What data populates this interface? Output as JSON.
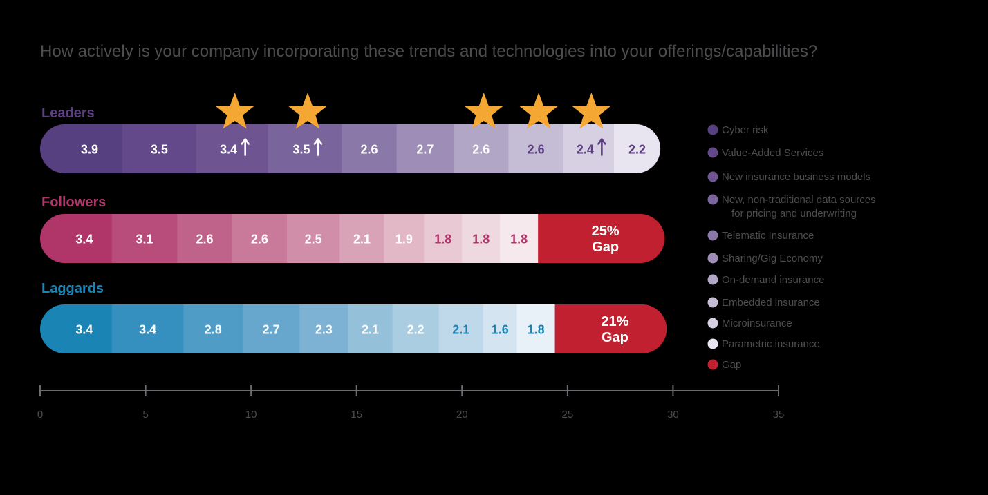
{
  "chart_data": {
    "type": "stacked-bar",
    "title": "How actively is your company incorporating these trends and technologies into your offerings/capabilities?",
    "xlim": [
      0,
      35
    ],
    "ticks": [
      0,
      5,
      10,
      15,
      20,
      25,
      30,
      35
    ],
    "tick_labels": [
      "0",
      "5",
      "10",
      "15",
      "20",
      "25",
      "30",
      "35"
    ],
    "categories": [
      "Cyber risk",
      "Value-Added Services",
      "New insurance business models",
      "New, non-traditional data sources for pricing and underwriting",
      "Telematic Insurance",
      "Sharing/Gig Economy",
      "On-demand insurance",
      "Embedded insurance",
      "Microinsurance",
      "Parametric insurance"
    ],
    "groups": [
      {
        "name": "Leaders",
        "label_color": "#5b3f80",
        "values": [
          3.9,
          3.5,
          3.4,
          3.5,
          2.6,
          2.7,
          2.6,
          2.6,
          2.4,
          2.2
        ],
        "labels": [
          "3.9",
          "3.5",
          "3.4",
          "3.5",
          "2.6",
          "2.7",
          "2.6",
          "2.6",
          "2.4",
          "2.2"
        ],
        "colors": [
          "#574080",
          "#63498a",
          "#6e5592",
          "#79649b",
          "#8a78a8",
          "#9d8db7",
          "#b2a6c6",
          "#c5bcd5",
          "#d6d0e2",
          "#e8e4f0"
        ],
        "text_colors": [
          "#ffffff",
          "#ffffff",
          "#ffffff",
          "#ffffff",
          "#ffffff",
          "#ffffff",
          "#ffffff",
          "#5b3f80",
          "#5b3f80",
          "#5b3f80"
        ],
        "arrows": [
          false,
          false,
          true,
          true,
          false,
          false,
          false,
          false,
          true,
          false
        ],
        "arrow_colors": [
          "#ffffff",
          "#ffffff",
          "#ffffff",
          "#ffffff",
          "#ffffff",
          "#ffffff",
          "#ffffff",
          "#5b3f80",
          "#5b3f80",
          "#5b3f80"
        ],
        "stars": [
          false,
          false,
          true,
          true,
          false,
          false,
          true,
          true,
          true,
          false
        ],
        "gap": null
      },
      {
        "name": "Followers",
        "label_color": "#b03569",
        "values": [
          3.4,
          3.1,
          2.6,
          2.6,
          2.5,
          2.1,
          1.9,
          1.8,
          1.8,
          1.8
        ],
        "labels": [
          "3.4",
          "3.1",
          "2.6",
          "2.6",
          "2.5",
          "2.1",
          "1.9",
          "1.8",
          "1.8",
          "1.8"
        ],
        "colors": [
          "#b03569",
          "#b84d7b",
          "#c0638b",
          "#c97999",
          "#d08ea8",
          "#d9a3b7",
          "#e2b8c7",
          "#e8c9d4",
          "#efd9e1",
          "#f5e9ee"
        ],
        "text_colors": [
          "#ffffff",
          "#ffffff",
          "#ffffff",
          "#ffffff",
          "#ffffff",
          "#ffffff",
          "#ffffff",
          "#b03569",
          "#b03569",
          "#b03569"
        ],
        "arrows": [
          false,
          false,
          false,
          false,
          false,
          false,
          false,
          false,
          false,
          false
        ],
        "stars": [
          false,
          false,
          false,
          false,
          false,
          false,
          false,
          false,
          false,
          false
        ],
        "gap": {
          "value": 6.0,
          "label": "25%",
          "sublabel": "Gap",
          "color": "#c0202f"
        }
      },
      {
        "name": "Laggards",
        "label_color": "#1a85b5",
        "values": [
          3.4,
          3.4,
          2.8,
          2.7,
          2.3,
          2.1,
          2.2,
          2.1,
          1.6,
          1.8
        ],
        "labels": [
          "3.4",
          "3.4",
          "2.8",
          "2.7",
          "2.3",
          "2.1",
          "2.2",
          "2.1",
          "1.6",
          "1.8"
        ],
        "colors": [
          "#1a85b5",
          "#3590c0",
          "#4f9cc7",
          "#67a7cd",
          "#7eb2d4",
          "#95c0da",
          "#aacde2",
          "#bfd9ea",
          "#d4e5f1",
          "#e8f1f8"
        ],
        "text_colors": [
          "#ffffff",
          "#ffffff",
          "#ffffff",
          "#ffffff",
          "#ffffff",
          "#ffffff",
          "#ffffff",
          "#1a85b5",
          "#1a85b5",
          "#1a85b5"
        ],
        "arrows": [
          false,
          false,
          false,
          false,
          false,
          false,
          false,
          false,
          false,
          false
        ],
        "stars": [
          false,
          false,
          false,
          false,
          false,
          false,
          false,
          false,
          false,
          false
        ],
        "gap": {
          "value": 5.3,
          "label": "21%",
          "sublabel": "Gap",
          "color": "#c0202f"
        }
      }
    ],
    "legend": [
      {
        "label": "Cyber risk",
        "color": "#574080"
      },
      {
        "label": "Value-Added Services",
        "color": "#63498a"
      },
      {
        "label": "New insurance business models",
        "color": "#6e5592"
      },
      {
        "label": "New, non-traditional data sources",
        "label2": "for pricing and underwriting",
        "color": "#79649b"
      },
      {
        "label": "Telematic Insurance",
        "color": "#8a78a8"
      },
      {
        "label": "Sharing/Gig Economy",
        "color": "#9d8db7"
      },
      {
        "label": "On-demand insurance",
        "color": "#b2a6c6"
      },
      {
        "label": "Embedded insurance",
        "color": "#c5bcd5"
      },
      {
        "label": "Microinsurance",
        "color": "#d6d0e2"
      },
      {
        "label": "Parametric insurance",
        "color": "#e8e4f0"
      },
      {
        "label": "Gap",
        "color": "#c0202f"
      }
    ],
    "star_color": "#f5a733",
    "axis_color": "#6d6e71"
  }
}
